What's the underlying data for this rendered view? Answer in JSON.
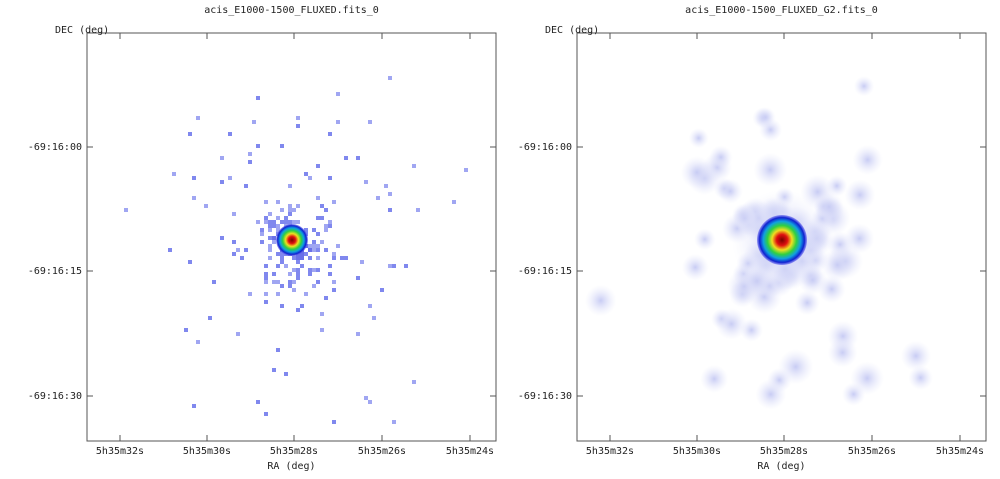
{
  "panels": [
    {
      "title": "acis_E1000-1500_FLUXED.fits_0",
      "y_label": "DEC (deg)",
      "x_label": "RA (deg)",
      "x_ticks": [
        "5h35m32s",
        "5h35m30s",
        "5h35m28s",
        "5h35m26s",
        "5h35m24s"
      ],
      "y_ticks": [
        "-69:16:00",
        "-69:16:15",
        "-69:16:30"
      ]
    },
    {
      "title": "acis_E1000-1500_FLUXED_G2.fits_0",
      "y_label": "DEC (deg)",
      "x_label": "RA (deg)",
      "x_ticks": [
        "5h35m32s",
        "5h35m30s",
        "5h35m28s",
        "5h35m26s",
        "5h35m24s"
      ],
      "y_ticks": [
        "-69:16:00",
        "-69:16:15",
        "-69:16:30"
      ]
    }
  ]
}
